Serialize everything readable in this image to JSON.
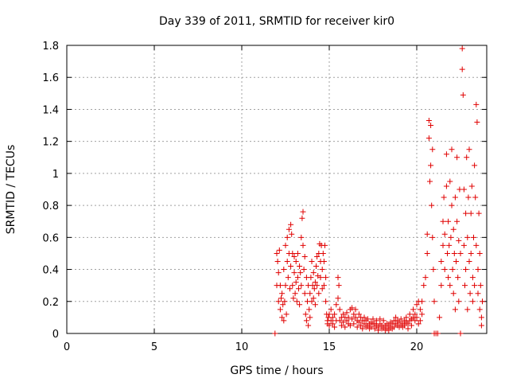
{
  "chart_data": {
    "type": "scatter",
    "title": "Day 339 of 2011, SRMTID for receiver kir0",
    "xlabel": "GPS time / hours",
    "ylabel": "SRMTID / TECUs",
    "xlim": [
      0,
      24
    ],
    "ylim": [
      0,
      1.8
    ],
    "xticks": [
      "0",
      "5",
      "10",
      "15",
      "20"
    ],
    "yticks": [
      "0",
      "0.2",
      "0.4",
      "0.6",
      "0.8",
      "1",
      "1.2",
      "1.4",
      "1.6",
      "1.8"
    ],
    "grid": true,
    "legend": "none",
    "marker": "plus",
    "marker_color": "#e00000",
    "points": [
      [
        11.9,
        0.0
      ],
      [
        12.0,
        0.5
      ],
      [
        12.0,
        0.3
      ],
      [
        12.05,
        0.45
      ],
      [
        12.1,
        0.2
      ],
      [
        12.1,
        0.38
      ],
      [
        12.15,
        0.52
      ],
      [
        12.2,
        0.15
      ],
      [
        12.2,
        0.3
      ],
      [
        12.25,
        0.22
      ],
      [
        12.3,
        0.1
      ],
      [
        12.3,
        0.25
      ],
      [
        12.35,
        0.18
      ],
      [
        12.4,
        0.08
      ],
      [
        12.4,
        0.4
      ],
      [
        12.45,
        0.2
      ],
      [
        12.5,
        0.55
      ],
      [
        12.5,
        0.3
      ],
      [
        12.55,
        0.12
      ],
      [
        12.6,
        0.45
      ],
      [
        12.6,
        0.6
      ],
      [
        12.65,
        0.35
      ],
      [
        12.7,
        0.65
      ],
      [
        12.7,
        0.5
      ],
      [
        12.75,
        0.28
      ],
      [
        12.8,
        0.68
      ],
      [
        12.8,
        0.42
      ],
      [
        12.85,
        0.62
      ],
      [
        12.9,
        0.3
      ],
      [
        12.9,
        0.5
      ],
      [
        12.95,
        0.22
      ],
      [
        13.0,
        0.48
      ],
      [
        13.0,
        0.38
      ],
      [
        13.05,
        0.25
      ],
      [
        13.1,
        0.45
      ],
      [
        13.1,
        0.32
      ],
      [
        13.15,
        0.2
      ],
      [
        13.2,
        0.5
      ],
      [
        13.2,
        0.35
      ],
      [
        13.25,
        0.28
      ],
      [
        13.3,
        0.42
      ],
      [
        13.3,
        0.18
      ],
      [
        13.35,
        0.38
      ],
      [
        13.4,
        0.6
      ],
      [
        13.4,
        0.3
      ],
      [
        13.45,
        0.72
      ],
      [
        13.5,
        0.76
      ],
      [
        13.5,
        0.55
      ],
      [
        13.55,
        0.4
      ],
      [
        13.6,
        0.25
      ],
      [
        13.6,
        0.48
      ],
      [
        13.65,
        0.12
      ],
      [
        13.7,
        0.35
      ],
      [
        13.7,
        0.08
      ],
      [
        13.75,
        0.2
      ],
      [
        13.8,
        0.05
      ],
      [
        13.8,
        0.3
      ],
      [
        13.85,
        0.15
      ],
      [
        13.9,
        0.1
      ],
      [
        13.9,
        0.25
      ],
      [
        13.95,
        0.35
      ],
      [
        14.0,
        0.2
      ],
      [
        14.0,
        0.45
      ],
      [
        14.05,
        0.3
      ],
      [
        14.1,
        0.22
      ],
      [
        14.1,
        0.38
      ],
      [
        14.15,
        0.28
      ],
      [
        14.2,
        0.18
      ],
      [
        14.2,
        0.32
      ],
      [
        14.25,
        0.42
      ],
      [
        14.3,
        0.3
      ],
      [
        14.3,
        0.48
      ],
      [
        14.35,
        0.36
      ],
      [
        14.4,
        0.5
      ],
      [
        14.4,
        0.25
      ],
      [
        14.45,
        0.56
      ],
      [
        14.5,
        0.45
      ],
      [
        14.5,
        0.35
      ],
      [
        14.55,
        0.55
      ],
      [
        14.6,
        0.4
      ],
      [
        14.6,
        0.28
      ],
      [
        14.65,
        0.5
      ],
      [
        14.7,
        0.3
      ],
      [
        14.7,
        0.45
      ],
      [
        14.75,
        0.55
      ],
      [
        14.8,
        0.35
      ],
      [
        14.8,
        0.2
      ],
      [
        14.85,
        0.12
      ],
      [
        14.9,
        0.08
      ],
      [
        14.9,
        0.06
      ],
      [
        14.95,
        0.1
      ],
      [
        15.0,
        0.05
      ],
      [
        15.0,
        0.12
      ],
      [
        15.1,
        0.08
      ],
      [
        15.1,
        0.15
      ],
      [
        15.2,
        0.06
      ],
      [
        15.2,
        0.1
      ],
      [
        15.3,
        0.12
      ],
      [
        15.3,
        0.04
      ],
      [
        15.4,
        0.08
      ],
      [
        15.4,
        0.18
      ],
      [
        15.5,
        0.35
      ],
      [
        15.5,
        0.22
      ],
      [
        15.55,
        0.3
      ],
      [
        15.6,
        0.15
      ],
      [
        15.6,
        0.08
      ],
      [
        15.7,
        0.1
      ],
      [
        15.7,
        0.05
      ],
      [
        15.8,
        0.12
      ],
      [
        15.8,
        0.07
      ],
      [
        15.9,
        0.1
      ],
      [
        15.9,
        0.04
      ],
      [
        16.0,
        0.08
      ],
      [
        16.0,
        0.13
      ],
      [
        16.1,
        0.06
      ],
      [
        16.1,
        0.1
      ],
      [
        16.2,
        0.15
      ],
      [
        16.2,
        0.05
      ],
      [
        16.3,
        0.09
      ],
      [
        16.3,
        0.16
      ],
      [
        16.4,
        0.12
      ],
      [
        16.4,
        0.06
      ],
      [
        16.5,
        0.1
      ],
      [
        16.5,
        0.15
      ],
      [
        16.6,
        0.08
      ],
      [
        16.6,
        0.04
      ],
      [
        16.7,
        0.12
      ],
      [
        16.7,
        0.07
      ],
      [
        16.8,
        0.05
      ],
      [
        16.8,
        0.1
      ],
      [
        16.9,
        0.08
      ],
      [
        16.9,
        0.03
      ],
      [
        17.0,
        0.06
      ],
      [
        17.0,
        0.1
      ],
      [
        17.1,
        0.04
      ],
      [
        17.1,
        0.08
      ],
      [
        17.2,
        0.05
      ],
      [
        17.2,
        0.09
      ],
      [
        17.3,
        0.06
      ],
      [
        17.3,
        0.03
      ],
      [
        17.4,
        0.07
      ],
      [
        17.4,
        0.04
      ],
      [
        17.5,
        0.06
      ],
      [
        17.5,
        0.09
      ],
      [
        17.6,
        0.03
      ],
      [
        17.6,
        0.06
      ],
      [
        17.7,
        0.05
      ],
      [
        17.7,
        0.08
      ],
      [
        17.8,
        0.04
      ],
      [
        17.8,
        0.02
      ],
      [
        17.9,
        0.06
      ],
      [
        17.9,
        0.09
      ],
      [
        18.0,
        0.03
      ],
      [
        18.0,
        0.05
      ],
      [
        18.1,
        0.04
      ],
      [
        18.1,
        0.08
      ],
      [
        18.2,
        0.02
      ],
      [
        18.2,
        0.05
      ],
      [
        18.3,
        0.06
      ],
      [
        18.3,
        0.03
      ],
      [
        18.4,
        0.05
      ],
      [
        18.4,
        0.02
      ],
      [
        18.5,
        0.04
      ],
      [
        18.5,
        0.07
      ],
      [
        18.6,
        0.03
      ],
      [
        18.6,
        0.06
      ],
      [
        18.7,
        0.08
      ],
      [
        18.7,
        0.04
      ],
      [
        18.8,
        0.06
      ],
      [
        18.8,
        0.1
      ],
      [
        18.9,
        0.05
      ],
      [
        18.9,
        0.08
      ],
      [
        19.0,
        0.04
      ],
      [
        19.0,
        0.07
      ],
      [
        19.1,
        0.05
      ],
      [
        19.1,
        0.09
      ],
      [
        19.2,
        0.06
      ],
      [
        19.2,
        0.04
      ],
      [
        19.3,
        0.08
      ],
      [
        19.3,
        0.05
      ],
      [
        19.4,
        0.07
      ],
      [
        19.4,
        0.1
      ],
      [
        19.5,
        0.06
      ],
      [
        19.5,
        0.03
      ],
      [
        19.6,
        0.08
      ],
      [
        19.6,
        0.12
      ],
      [
        19.7,
        0.05
      ],
      [
        19.7,
        0.09
      ],
      [
        19.8,
        0.1
      ],
      [
        19.8,
        0.15
      ],
      [
        19.9,
        0.12
      ],
      [
        19.9,
        0.08
      ],
      [
        20.0,
        0.18
      ],
      [
        20.0,
        0.1
      ],
      [
        20.1,
        0.2
      ],
      [
        20.1,
        0.06
      ],
      [
        20.2,
        0.15
      ],
      [
        20.2,
        0.08
      ],
      [
        20.3,
        0.12
      ],
      [
        20.3,
        0.2
      ],
      [
        20.4,
        0.3
      ],
      [
        20.5,
        0.35
      ],
      [
        20.6,
        0.62
      ],
      [
        20.6,
        0.5
      ],
      [
        20.7,
        1.33
      ],
      [
        20.7,
        1.22
      ],
      [
        20.75,
        0.95
      ],
      [
        20.8,
        1.3
      ],
      [
        20.8,
        1.05
      ],
      [
        20.85,
        0.8
      ],
      [
        20.9,
        1.15
      ],
      [
        20.9,
        0.6
      ],
      [
        20.95,
        0.4
      ],
      [
        21.0,
        0.0
      ],
      [
        21.0,
        0.2
      ],
      [
        21.1,
        0.0
      ],
      [
        21.2,
        0.0
      ],
      [
        21.3,
        0.1
      ],
      [
        21.4,
        0.3
      ],
      [
        21.4,
        0.45
      ],
      [
        21.5,
        0.55
      ],
      [
        21.5,
        0.7
      ],
      [
        21.55,
        0.85
      ],
      [
        21.6,
        0.62
      ],
      [
        21.6,
        0.4
      ],
      [
        21.7,
        1.12
      ],
      [
        21.7,
        0.92
      ],
      [
        21.75,
        0.5
      ],
      [
        21.8,
        0.35
      ],
      [
        21.8,
        0.7
      ],
      [
        21.85,
        0.55
      ],
      [
        21.9,
        0.95
      ],
      [
        21.9,
        0.3
      ],
      [
        21.95,
        0.6
      ],
      [
        22.0,
        1.15
      ],
      [
        22.0,
        0.8
      ],
      [
        22.05,
        0.4
      ],
      [
        22.1,
        0.65
      ],
      [
        22.1,
        0.25
      ],
      [
        22.15,
        0.5
      ],
      [
        22.2,
        0.85
      ],
      [
        22.2,
        0.15
      ],
      [
        22.25,
        0.45
      ],
      [
        22.3,
        1.1
      ],
      [
        22.3,
        0.7
      ],
      [
        22.35,
        0.35
      ],
      [
        22.4,
        0.58
      ],
      [
        22.4,
        0.2
      ],
      [
        22.45,
        0.9
      ],
      [
        22.5,
        0.0
      ],
      [
        22.5,
        0.5
      ],
      [
        22.6,
        1.78
      ],
      [
        22.6,
        1.65
      ],
      [
        22.65,
        1.49
      ],
      [
        22.7,
        0.9
      ],
      [
        22.7,
        0.55
      ],
      [
        22.75,
        0.3
      ],
      [
        22.8,
        0.75
      ],
      [
        22.8,
        0.4
      ],
      [
        22.85,
        1.1
      ],
      [
        22.9,
        0.6
      ],
      [
        22.9,
        0.15
      ],
      [
        22.95,
        0.85
      ],
      [
        23.0,
        1.15
      ],
      [
        23.0,
        0.45
      ],
      [
        23.05,
        0.25
      ],
      [
        23.1,
        0.75
      ],
      [
        23.1,
        0.5
      ],
      [
        23.15,
        0.92
      ],
      [
        23.2,
        0.35
      ],
      [
        23.2,
        0.2
      ],
      [
        23.25,
        0.6
      ],
      [
        23.3,
        1.05
      ],
      [
        23.3,
        0.3
      ],
      [
        23.35,
        0.85
      ],
      [
        23.4,
        1.43
      ],
      [
        23.4,
        0.55
      ],
      [
        23.45,
        1.32
      ],
      [
        23.5,
        0.4
      ],
      [
        23.5,
        0.25
      ],
      [
        23.55,
        0.75
      ],
      [
        23.6,
        0.15
      ],
      [
        23.6,
        0.5
      ],
      [
        23.65,
        0.3
      ],
      [
        23.7,
        0.1
      ],
      [
        23.7,
        0.05
      ],
      [
        23.75,
        0.2
      ]
    ]
  }
}
